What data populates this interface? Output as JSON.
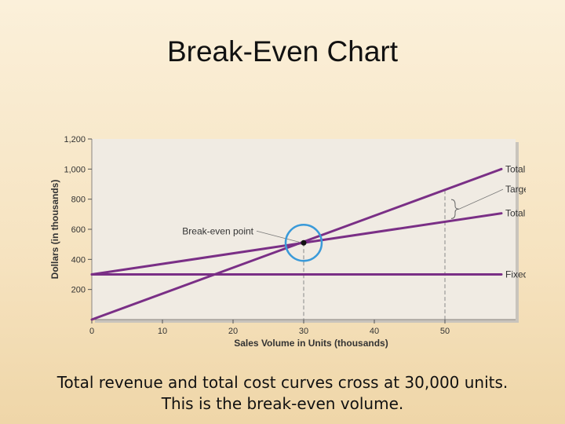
{
  "slide": {
    "title": "Break-Even Chart",
    "caption_line1": "Total revenue and total cost curves cross at 30,000 units.",
    "caption_line2": "This is the break-even volume."
  },
  "chart_data": {
    "type": "line",
    "xlabel": "Sales Volume in Units (thousands)",
    "ylabel": "Dollars (in thousands)",
    "xlim": [
      0,
      60
    ],
    "ylim": [
      0,
      1200
    ],
    "xticks": [
      0,
      10,
      20,
      30,
      40,
      50
    ],
    "yticks": [
      200,
      400,
      600,
      800,
      1000,
      1200
    ],
    "ytick_labels": [
      "200",
      "400",
      "600",
      "800",
      "1,000",
      "1,200"
    ],
    "series": [
      {
        "name": "Total revenue",
        "x": [
          0,
          58
        ],
        "y": [
          0,
          1000
        ],
        "color": "#7a2f86"
      },
      {
        "name": "Total cost",
        "x": [
          0,
          58
        ],
        "y": [
          300,
          706
        ],
        "color": "#7a2f86"
      },
      {
        "name": "Fixed cost",
        "x": [
          0,
          58
        ],
        "y": [
          300,
          300
        ],
        "color": "#7a2f86"
      }
    ],
    "annotations": {
      "break_even": {
        "label": "Break-even point",
        "x": 30,
        "y": 510
      },
      "target_profit": {
        "label": "Target profit",
        "x": 50,
        "y_low": 650,
        "y_high": 860
      },
      "reference_lines_x": [
        30,
        50
      ]
    },
    "grid": false,
    "highlight_color": "#3a9ad9"
  }
}
